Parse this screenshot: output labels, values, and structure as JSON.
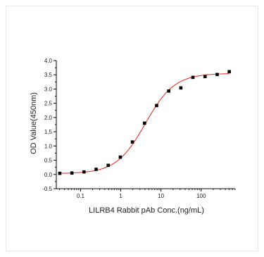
{
  "chart_data": {
    "type": "scatter",
    "xlabel": "LILRB4 Rabbit pAb Conc.(ng/mL)",
    "ylabel": "OD Value(450nm)",
    "x_scale": "log",
    "xlim": [
      0.025,
      700
    ],
    "ylim": [
      -0.5,
      4.0
    ],
    "x_ticks": [
      0.1,
      1,
      10,
      100
    ],
    "x_tick_labels": [
      "0.1",
      "1",
      "10",
      "100"
    ],
    "y_ticks": [
      -0.5,
      0.0,
      0.5,
      1.0,
      1.5,
      2.0,
      2.5,
      3.0,
      3.5,
      4.0
    ],
    "y_tick_labels": [
      "-0.5",
      "0.0",
      "0.5",
      "1.0",
      "1.5",
      "2.0",
      "2.5",
      "3.0",
      "3.5",
      "4.0"
    ],
    "grid": false,
    "legend": "none",
    "series": [
      {
        "marker_color": "#000000",
        "x": [
          0.0305,
          0.061,
          0.122,
          0.244,
          0.488,
          0.977,
          1.95,
          3.91,
          7.81,
          15.6,
          31.25,
          62.5,
          125,
          250,
          500
        ],
        "y": [
          0.04,
          0.05,
          0.09,
          0.18,
          0.32,
          0.61,
          1.14,
          1.8,
          2.42,
          2.93,
          3.04,
          3.41,
          3.44,
          3.51,
          3.61
        ]
      }
    ],
    "fit_curve": {
      "color": "#e8362c",
      "model": "4PL",
      "bottom": 0.03,
      "top": 3.55,
      "ec50": 4.1,
      "hill": 1.2
    }
  }
}
